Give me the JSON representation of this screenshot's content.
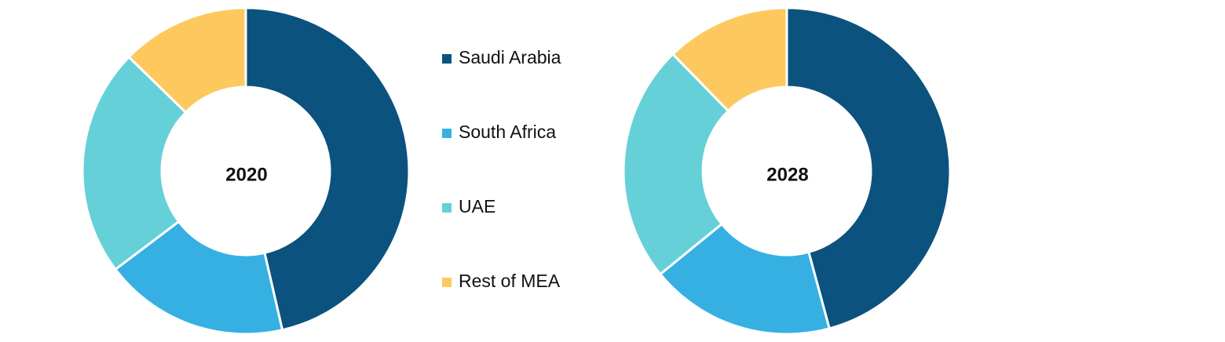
{
  "chart_data": [
    {
      "type": "donut",
      "title": "2020",
      "categories": [
        "Saudi Arabia",
        "South Africa",
        "UAE",
        "Rest of MEA"
      ],
      "colors": [
        "#0b527f",
        "#36b0e2",
        "#65d0d8",
        "#fdc95f"
      ],
      "values": [
        46.4,
        18.3,
        22.6,
        12.7
      ]
    },
    {
      "type": "donut",
      "title": "2028",
      "values": [
        45.8,
        18.3,
        23.6,
        12.3
      ]
    }
  ]
}
